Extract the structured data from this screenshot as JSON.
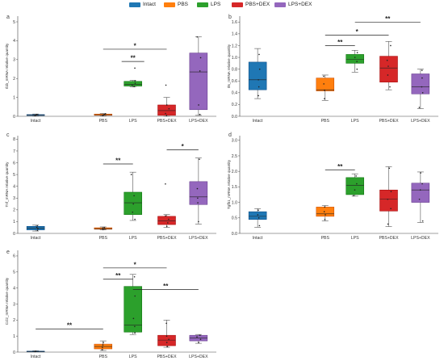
{
  "legend": [
    {
      "label": "Intact",
      "color": "#1f77b4"
    },
    {
      "label": "PBS",
      "color": "#ff7f0e"
    },
    {
      "label": "LPS",
      "color": "#2ca02c"
    },
    {
      "label": "PBS+DEX",
      "color": "#d62728"
    },
    {
      "label": "LPS+DEX",
      "color": "#9467bd"
    }
  ],
  "chart_data": [
    {
      "type": "box",
      "panel": "a",
      "ylabel": "Il1b_mRNA relative quantity",
      "ylim": [
        0,
        5.3
      ],
      "yticks": [
        0,
        1,
        2,
        3,
        4,
        5
      ],
      "categories": [
        "Intact",
        "PBS",
        "LPS",
        "PBS+DEX",
        "LPS+DEX"
      ],
      "boxes": [
        {
          "group": "Intact",
          "min": 0.02,
          "q1": 0.04,
          "median": 0.06,
          "q3": 0.09,
          "max": 0.12,
          "points": [
            0.03,
            0.05,
            0.07,
            0.1
          ]
        },
        {
          "group": "PBS",
          "min": 0.02,
          "q1": 0.05,
          "median": 0.08,
          "q3": 0.12,
          "max": 0.15,
          "points": [
            0.04,
            0.07,
            0.1,
            0.13
          ]
        },
        {
          "group": "LPS",
          "min": 1.55,
          "q1": 1.6,
          "median": 1.68,
          "q3": 1.85,
          "max": 1.9,
          "points": [
            1.58,
            1.65,
            1.75,
            1.88,
            2.55
          ]
        },
        {
          "group": "PBS+DEX",
          "min": 0.0,
          "q1": 0.05,
          "median": 0.3,
          "q3": 0.6,
          "max": 1.0,
          "points": [
            0.05,
            0.15,
            0.4,
            0.6,
            1.65
          ]
        },
        {
          "group": "LPS+DEX",
          "min": 0.05,
          "q1": 0.35,
          "median": 2.35,
          "q3": 3.35,
          "max": 4.2,
          "points": [
            0.1,
            0.6,
            2.4,
            3.1,
            4.2
          ]
        }
      ],
      "significance": [
        {
          "from": "LPS",
          "to": "LPS",
          "label": "**",
          "y": 2.9
        },
        {
          "from": "PBS",
          "to": "PBS+DEX",
          "label": "*",
          "y": 3.55
        }
      ]
    },
    {
      "type": "box",
      "panel": "b",
      "ylabel": "Il6_mRNA relative quantity",
      "ylim": [
        0,
        1.7
      ],
      "yticks": [
        0.0,
        0.2,
        0.4,
        0.6,
        0.8,
        1.0,
        1.2,
        1.4,
        1.6
      ],
      "categories": [
        "Intact",
        "PBS",
        "LPS",
        "PBS+DEX",
        "LPS+DEX"
      ],
      "boxes": [
        {
          "group": "Intact",
          "min": 0.3,
          "q1": 0.45,
          "median": 0.62,
          "q3": 0.92,
          "max": 1.15,
          "points": [
            0.35,
            0.5,
            0.62,
            0.8,
            1.05
          ]
        },
        {
          "group": "PBS",
          "min": 0.27,
          "q1": 0.43,
          "median": 0.45,
          "q3": 0.65,
          "max": 0.7,
          "points": [
            0.3,
            0.44,
            0.55,
            0.68
          ]
        },
        {
          "group": "LPS",
          "min": 0.75,
          "q1": 0.9,
          "median": 0.97,
          "q3": 1.05,
          "max": 1.12,
          "points": [
            0.8,
            0.93,
            1.0,
            1.08
          ]
        },
        {
          "group": "PBS+DEX",
          "min": 0.45,
          "q1": 0.58,
          "median": 0.82,
          "q3": 1.02,
          "max": 1.27,
          "points": [
            0.5,
            0.7,
            0.85,
            0.95,
            1.2
          ]
        },
        {
          "group": "LPS+DEX",
          "min": 0.13,
          "q1": 0.38,
          "median": 0.5,
          "q3": 0.72,
          "max": 0.8,
          "points": [
            0.15,
            0.4,
            0.5,
            0.65,
            0.78
          ]
        }
      ],
      "significance": [
        {
          "from": "PBS",
          "to": "LPS",
          "label": "**",
          "y": 1.2
        },
        {
          "from": "PBS",
          "to": "PBS+DEX",
          "label": "*",
          "y": 1.38
        },
        {
          "from": "LPS",
          "to": "LPS+DEX",
          "label": "**",
          "y": 1.6
        }
      ]
    },
    {
      "type": "box",
      "panel": "c",
      "ylabel": "Tnf_mRNA relative quantity",
      "ylim": [
        0,
        8.3
      ],
      "yticks": [
        0,
        1,
        2,
        3,
        4,
        5,
        6,
        7,
        8
      ],
      "categories": [
        "Intact",
        "PBS",
        "LPS",
        "PBS+DEX",
        "LPS+DEX"
      ],
      "boxes": [
        {
          "group": "Intact",
          "min": 0.2,
          "q1": 0.3,
          "median": 0.45,
          "q3": 0.6,
          "max": 0.7,
          "points": [
            0.25,
            0.4,
            0.5,
            0.65
          ]
        },
        {
          "group": "PBS",
          "min": 0.3,
          "q1": 0.35,
          "median": 0.4,
          "q3": 0.48,
          "max": 0.55,
          "points": [
            0.32,
            0.38,
            0.45,
            0.5
          ]
        },
        {
          "group": "LPS",
          "min": 1.1,
          "q1": 1.6,
          "median": 2.6,
          "q3": 3.5,
          "max": 5.2,
          "points": [
            1.2,
            1.8,
            2.5,
            3.2,
            5.0
          ]
        },
        {
          "group": "PBS+DEX",
          "min": 0.5,
          "q1": 0.75,
          "median": 1.05,
          "q3": 1.45,
          "max": 1.6,
          "points": [
            0.6,
            0.9,
            1.2,
            1.5,
            4.2
          ]
        },
        {
          "group": "LPS+DEX",
          "min": 0.8,
          "q1": 2.45,
          "median": 3.1,
          "q3": 4.4,
          "max": 6.4,
          "points": [
            1.0,
            2.6,
            3.0,
            3.8,
            6.3
          ]
        }
      ],
      "significance": [
        {
          "from": "PBS",
          "to": "LPS",
          "label": "**",
          "y": 5.9
        },
        {
          "from": "PBS+DEX",
          "to": "LPS+DEX",
          "label": "*",
          "y": 7.1
        }
      ]
    },
    {
      "type": "box",
      "panel": "d",
      "ylabel": "Tgfb1_mRNA relative quantity",
      "ylim": [
        0,
        3.15
      ],
      "yticks": [
        0.0,
        0.5,
        1.0,
        1.5,
        2.0,
        2.5,
        3.0
      ],
      "categories": [
        "Intact",
        "PBS",
        "LPS",
        "PBS+DEX",
        "LPS+DEX"
      ],
      "boxes": [
        {
          "group": "Intact",
          "min": 0.2,
          "q1": 0.45,
          "median": 0.55,
          "q3": 0.7,
          "max": 0.8,
          "points": [
            0.25,
            0.5,
            0.6,
            0.75
          ]
        },
        {
          "group": "PBS",
          "min": 0.4,
          "q1": 0.55,
          "median": 0.63,
          "q3": 0.85,
          "max": 0.9,
          "points": [
            0.45,
            0.6,
            0.7,
            0.85
          ]
        },
        {
          "group": "LPS",
          "min": 1.2,
          "q1": 1.25,
          "median": 1.55,
          "q3": 1.8,
          "max": 1.92,
          "points": [
            1.22,
            1.4,
            1.6,
            1.85
          ]
        },
        {
          "group": "PBS+DEX",
          "min": 0.22,
          "q1": 0.72,
          "median": 1.1,
          "q3": 1.4,
          "max": 2.15,
          "points": [
            0.3,
            0.8,
            1.1,
            1.35,
            2.1
          ]
        },
        {
          "group": "LPS+DEX",
          "min": 0.35,
          "q1": 1.0,
          "median": 1.4,
          "q3": 1.62,
          "max": 1.98,
          "points": [
            0.4,
            1.1,
            1.4,
            1.6,
            1.95
          ]
        }
      ],
      "significance": [
        {
          "from": "PBS",
          "to": "LPS",
          "label": "**",
          "y": 2.05
        }
      ]
    },
    {
      "type": "box",
      "panel": "e",
      "ylabel": "Ccl2_mRNA relative quantity",
      "ylim": [
        0,
        6.35
      ],
      "yticks": [
        0,
        1,
        2,
        3,
        4,
        5,
        6
      ],
      "categories": [
        "Intact",
        "PBS",
        "LPS",
        "PBS+DEX",
        "LPS+DEX"
      ],
      "boxes": [
        {
          "group": "Intact",
          "min": 0.02,
          "q1": 0.03,
          "median": 0.04,
          "q3": 0.06,
          "max": 0.08,
          "points": [
            0.03,
            0.05,
            0.06
          ]
        },
        {
          "group": "PBS",
          "min": 0.1,
          "q1": 0.2,
          "median": 0.35,
          "q3": 0.5,
          "max": 0.7,
          "points": [
            0.15,
            0.3,
            0.45,
            0.6
          ]
        },
        {
          "group": "LPS",
          "min": 1.1,
          "q1": 1.25,
          "median": 1.7,
          "q3": 4.1,
          "max": 4.85,
          "points": [
            1.2,
            1.6,
            2.1,
            3.5,
            4.7
          ]
        },
        {
          "group": "PBS+DEX",
          "min": 0.3,
          "q1": 0.4,
          "median": 0.75,
          "q3": 1.05,
          "max": 2.0,
          "points": [
            0.35,
            0.6,
            0.8,
            1.0,
            1.8
          ]
        },
        {
          "group": "LPS+DEX",
          "min": 0.55,
          "q1": 0.7,
          "median": 0.88,
          "q3": 1.05,
          "max": 1.1,
          "points": [
            0.6,
            0.8,
            0.95,
            1.05
          ]
        }
      ],
      "significance": [
        {
          "from": "Intact",
          "to": "PBS",
          "label": "**",
          "y": 1.45
        },
        {
          "from": "PBS",
          "to": "PBS+DEX",
          "label": "*",
          "y": 5.25
        },
        {
          "from": "PBS",
          "to": "LPS",
          "label": "**",
          "y": 4.55
        },
        {
          "from": "LPS",
          "to": "LPS+DEX",
          "label": "**",
          "y": 3.9
        }
      ]
    }
  ]
}
